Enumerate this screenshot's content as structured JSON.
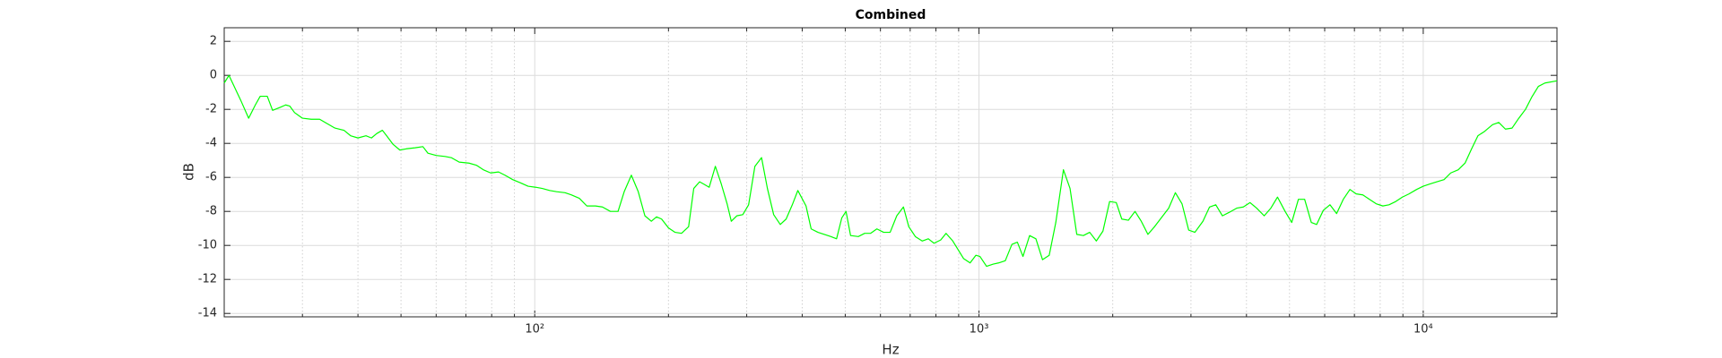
{
  "chart_data": {
    "type": "line",
    "title": "Combined",
    "xlabel": "Hz",
    "ylabel": "dB",
    "xscale": "log",
    "grid": true,
    "minor_grid": true,
    "color": "#00ff00",
    "xlim": [
      20,
      20000
    ],
    "ylim": [
      -14.2,
      2.8
    ],
    "xticks": [
      {
        "value": 100,
        "label": "10²"
      },
      {
        "value": 1000,
        "label": "10³"
      },
      {
        "value": 10000,
        "label": "10⁴"
      }
    ],
    "xminorticks": [
      30,
      40,
      50,
      60,
      70,
      80,
      90,
      200,
      300,
      400,
      500,
      600,
      700,
      800,
      900,
      2000,
      3000,
      4000,
      5000,
      6000,
      7000,
      8000,
      9000
    ],
    "yticks": [
      -14,
      -12,
      -10,
      -8,
      -6,
      -4,
      -2,
      0,
      2
    ],
    "x": [
      20.0,
      20.5,
      21.0,
      21.8,
      22.7,
      23.5,
      24.1,
      25.0,
      25.7,
      26.8,
      27.5,
      28.1,
      28.8,
      30.0,
      31.4,
      32.8,
      34.1,
      35.5,
      37.2,
      38.5,
      40.0,
      41.7,
      42.9,
      44.1,
      45.4,
      46.4,
      48.0,
      49.7,
      51.4,
      53.8,
      56.0,
      57.5,
      60.0,
      62.8,
      64.9,
      67.6,
      71.1,
      74.0,
      76.6,
      79.6,
      82.9,
      85.7,
      89.2,
      92.9,
      96.6,
      100.5,
      104,
      108,
      112,
      117,
      121,
      126,
      131,
      137,
      142,
      148,
      154,
      159,
      165,
      171,
      177,
      183,
      188,
      193,
      200,
      207,
      214,
      222,
      228,
      235,
      240,
      247,
      255,
      263,
      271,
      277,
      285,
      294,
      303,
      313,
      324,
      334,
      345,
      357,
      368,
      380,
      391,
      408,
      419,
      434,
      448,
      464,
      478,
      491,
      502,
      514,
      535,
      553,
      570,
      589,
      610,
      631,
      653,
      676,
      695,
      719,
      745,
      769,
      792,
      820,
      843,
      873,
      898,
      923,
      955,
      984,
      1005,
      1040,
      1077,
      1107,
      1146,
      1186,
      1220,
      1256,
      1300,
      1343,
      1390,
      1439,
      1489,
      1549,
      1603,
      1660,
      1718,
      1775,
      1837,
      1901,
      1968,
      2037,
      2096,
      2169,
      2245,
      2319,
      2400,
      2484,
      2583,
      2673,
      2767,
      2864,
      2965,
      3062,
      3192,
      3304,
      3412,
      3532,
      3656,
      3802,
      3936,
      4074,
      4217,
      4385,
      4539,
      4699,
      4887,
      5058,
      5236,
      5408,
      5598,
      5754,
      5957,
      6166,
      6383,
      6607,
      6839,
      7063,
      7311,
      7568,
      7834,
      8110,
      8375,
      8670,
      8974,
      9290,
      9661,
      10000,
      10350,
      10720,
      11140,
      11530,
      11990,
      12420,
      12850,
      13280,
      13750,
      14320,
      14790,
      15310,
      15850,
      16410,
      16990,
      17540,
      18160,
      18790,
      20000
    ],
    "values": [
      -0.45,
      0,
      -0.58,
      -1.48,
      -2.52,
      -1.74,
      -1.23,
      -1.23,
      -2.06,
      -1.87,
      -1.74,
      -1.81,
      -2.19,
      -2.52,
      -2.58,
      -2.58,
      -2.84,
      -3.1,
      -3.23,
      -3.55,
      -3.68,
      -3.55,
      -3.68,
      -3.42,
      -3.23,
      -3.55,
      -4.06,
      -4.39,
      -4.32,
      -4.26,
      -4.19,
      -4.58,
      -4.71,
      -4.77,
      -4.84,
      -5.1,
      -5.16,
      -5.29,
      -5.55,
      -5.74,
      -5.68,
      -5.87,
      -6.13,
      -6.32,
      -6.52,
      -6.58,
      -6.65,
      -6.77,
      -6.84,
      -6.9,
      -7.03,
      -7.23,
      -7.68,
      -7.68,
      -7.74,
      -8.0,
      -8.0,
      -6.84,
      -5.87,
      -6.84,
      -8.26,
      -8.58,
      -8.32,
      -8.45,
      -8.97,
      -9.23,
      -9.29,
      -8.9,
      -6.65,
      -6.26,
      -6.39,
      -6.58,
      -5.35,
      -6.39,
      -7.55,
      -8.58,
      -8.26,
      -8.19,
      -7.61,
      -5.35,
      -4.84,
      -6.65,
      -8.19,
      -8.77,
      -8.45,
      -7.61,
      -6.77,
      -7.68,
      -9.03,
      -9.23,
      -9.35,
      -9.48,
      -9.61,
      -8.39,
      -8.0,
      -9.42,
      -9.48,
      -9.29,
      -9.29,
      -9.03,
      -9.23,
      -9.23,
      -8.26,
      -7.74,
      -8.9,
      -9.48,
      -9.74,
      -9.61,
      -9.87,
      -9.68,
      -9.29,
      -9.74,
      -10.26,
      -10.77,
      -11.03,
      -10.58,
      -10.65,
      -11.23,
      -11.1,
      -11.03,
      -10.9,
      -9.94,
      -9.81,
      -10.65,
      -9.42,
      -9.61,
      -10.84,
      -10.58,
      -8.65,
      -5.55,
      -6.65,
      -9.35,
      -9.42,
      -9.23,
      -9.74,
      -9.16,
      -7.42,
      -7.48,
      -8.45,
      -8.52,
      -8.0,
      -8.58,
      -9.35,
      -8.9,
      -8.32,
      -7.81,
      -6.9,
      -7.55,
      -9.1,
      -9.23,
      -8.58,
      -7.74,
      -7.61,
      -8.26,
      -8.06,
      -7.81,
      -7.74,
      -7.48,
      -7.81,
      -8.26,
      -7.81,
      -7.16,
      -8.0,
      -8.65,
      -7.29,
      -7.29,
      -8.65,
      -8.77,
      -7.94,
      -7.61,
      -8.13,
      -7.29,
      -6.71,
      -6.97,
      -7.03,
      -7.29,
      -7.55,
      -7.68,
      -7.61,
      -7.42,
      -7.16,
      -6.97,
      -6.71,
      -6.52,
      -6.39,
      -6.26,
      -6.13,
      -5.74,
      -5.55,
      -5.16,
      -4.32,
      -3.55,
      -3.29,
      -2.9,
      -2.77,
      -3.16,
      -3.1,
      -2.52,
      -2.0,
      -1.29,
      -0.65,
      -0.45,
      -0.32
    ]
  }
}
